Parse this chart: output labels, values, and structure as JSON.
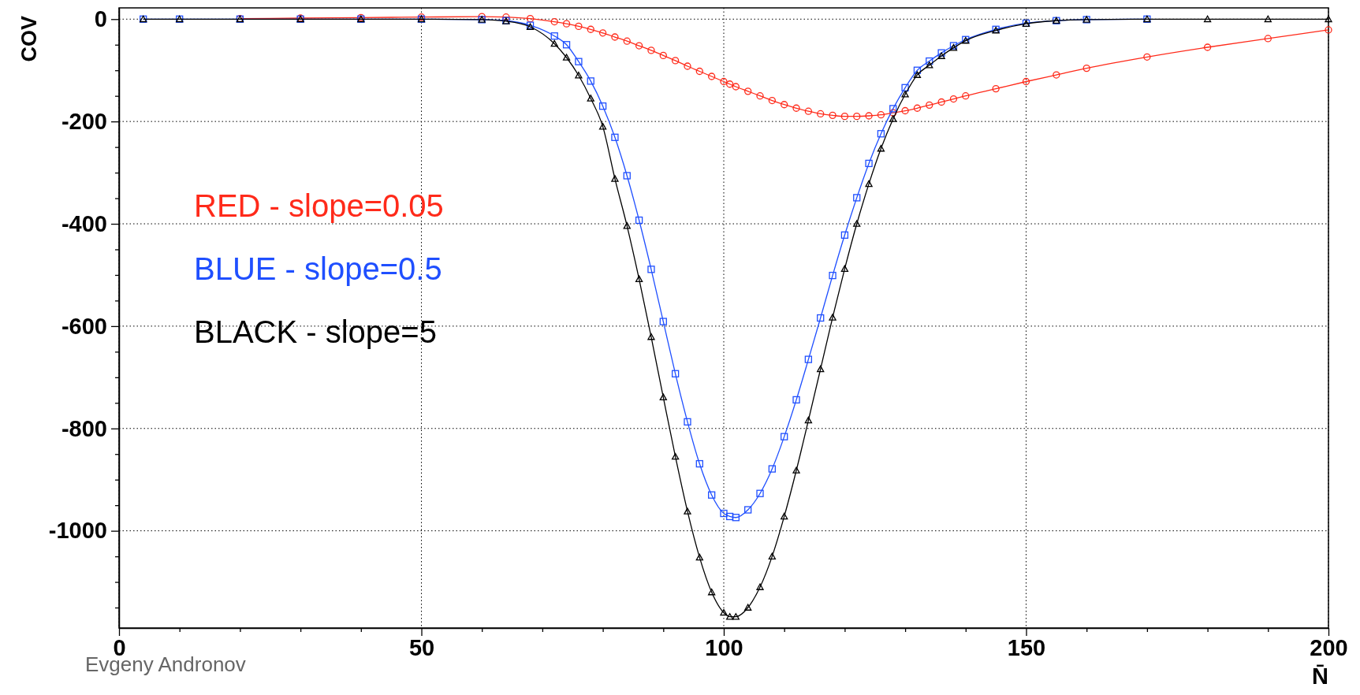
{
  "chart_data": {
    "type": "line",
    "xlabel": "N̄",
    "ylabel": "COV",
    "xlim": [
      0,
      200
    ],
    "ylim": [
      -1190,
      22
    ],
    "xticks": [
      0,
      {
        "value": 10,
        "label": null
      },
      {
        "value": 20,
        "label": null
      },
      {
        "value": 30,
        "label": null
      },
      {
        "value": 40,
        "label": null
      },
      50,
      {
        "value": 60,
        "label": null
      },
      {
        "value": 70,
        "label": null
      },
      {
        "value": 80,
        "label": null
      },
      {
        "value": 90,
        "label": null
      },
      100,
      {
        "value": 110,
        "label": null
      },
      {
        "value": 120,
        "label": null
      },
      {
        "value": 130,
        "label": null
      },
      {
        "value": 140,
        "label": null
      },
      150,
      {
        "value": 160,
        "label": null
      },
      {
        "value": 170,
        "label": null
      },
      {
        "value": 180,
        "label": null
      },
      {
        "value": 190,
        "label": null
      },
      200
    ],
    "yticks": [
      0,
      {
        "value": -50,
        "label": null
      },
      {
        "value": -100,
        "label": null
      },
      {
        "value": -150,
        "label": null
      },
      -200,
      {
        "value": -250,
        "label": null
      },
      {
        "value": -300,
        "label": null
      },
      {
        "value": -350,
        "label": null
      },
      -400,
      {
        "value": -450,
        "label": null
      },
      {
        "value": -500,
        "label": null
      },
      {
        "value": -550,
        "label": null
      },
      -600,
      {
        "value": -650,
        "label": null
      },
      {
        "value": -700,
        "label": null
      },
      {
        "value": -750,
        "label": null
      },
      -800,
      {
        "value": -850,
        "label": null
      },
      {
        "value": -900,
        "label": null
      },
      {
        "value": -950,
        "label": null
      },
      -1000,
      {
        "value": -1050,
        "label": null
      },
      {
        "value": -1100,
        "label": null
      },
      {
        "value": -1150,
        "label": null
      }
    ],
    "grid": true,
    "legend": "left",
    "line_style": "solid",
    "x": [
      4,
      10,
      20,
      30,
      40,
      50,
      60,
      64,
      68,
      72,
      74,
      76,
      78,
      80,
      82,
      84,
      86,
      88,
      90,
      92,
      94,
      96,
      98,
      100,
      101,
      102,
      104,
      106,
      108,
      110,
      112,
      114,
      116,
      118,
      120,
      122,
      124,
      126,
      128,
      130,
      132,
      134,
      136,
      138,
      140,
      145,
      150,
      155,
      160,
      170,
      180,
      190,
      200
    ],
    "series": [
      {
        "name": "RED - slope=0.05",
        "color": "#ff2a1a",
        "marker": "circle",
        "values": [
          null,
          null,
          1,
          2,
          3,
          4,
          5,
          4,
          1,
          -5,
          -9,
          -14,
          -20,
          -27,
          -35,
          -43,
          -52,
          -61,
          -71,
          -81,
          -92,
          -102,
          -112,
          -122,
          -127,
          -132,
          -141,
          -150,
          -159,
          -167,
          -174,
          -180,
          -185,
          -188,
          -190,
          -190,
          -189,
          -187,
          -183,
          -179,
          -174,
          -168,
          -162,
          -156,
          -150,
          -136,
          -122,
          -109,
          -96,
          -74,
          -55,
          -38,
          -21
        ]
      },
      {
        "name": "BLUE - slope=0.5",
        "color": "#1f4fff",
        "marker": "square",
        "values": [
          0,
          0,
          0,
          0,
          0,
          0,
          -1,
          -3,
          -12,
          -33,
          -50,
          -83,
          -121,
          -170,
          -231,
          -306,
          -393,
          -489,
          -591,
          -693,
          -787,
          -869,
          -930,
          -966,
          -972,
          -974,
          -959,
          -927,
          -879,
          -816,
          -744,
          -665,
          -584,
          -501,
          -422,
          -349,
          -282,
          -224,
          -175,
          -134,
          -100,
          -82,
          -66,
          -52,
          -40,
          -20,
          -8,
          -3,
          -1,
          0,
          null,
          null,
          null
        ]
      },
      {
        "name": "BLACK - slope=5",
        "color": "#000000",
        "marker": "triangle",
        "values": [
          0,
          0,
          0,
          0,
          0,
          0,
          -1,
          -4,
          -15,
          -48,
          -75,
          -110,
          -155,
          -210,
          -312,
          -404,
          -508,
          -621,
          -739,
          -855,
          -962,
          -1052,
          -1120,
          -1160,
          -1168,
          -1168,
          -1150,
          -1110,
          -1050,
          -972,
          -882,
          -784,
          -684,
          -583,
          -488,
          -400,
          -322,
          -253,
          -195,
          -147,
          -109,
          -90,
          -72,
          -56,
          -42,
          -22,
          -9,
          -3,
          -1,
          0,
          0,
          0,
          0
        ]
      }
    ],
    "annotations": [
      "Evgeny Andronov"
    ]
  }
}
